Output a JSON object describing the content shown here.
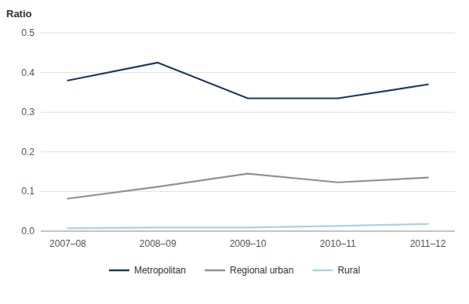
{
  "chart_data": {
    "type": "line",
    "y_label": "Ratio",
    "categories": [
      "2007–08",
      "2008–09",
      "2009–10",
      "2010–11",
      "2011–12"
    ],
    "series": [
      {
        "name": "Metropolitan",
        "color": "#1f3864",
        "values": [
          0.38,
          0.425,
          0.335,
          0.335,
          0.37
        ]
      },
      {
        "name": "Regional urban",
        "color": "#919191",
        "values": [
          0.082,
          0.112,
          0.145,
          0.123,
          0.135
        ]
      },
      {
        "name": "Rural",
        "color": "#a8d4e6",
        "values": [
          0.007,
          0.009,
          0.009,
          0.013,
          0.018
        ]
      }
    ],
    "ylim": [
      0.0,
      0.5
    ],
    "yticks": [
      {
        "value": 0.0,
        "label": "0.0"
      },
      0.1,
      0.2,
      0.3,
      0.4,
      0.5
    ],
    "grid": true,
    "legend": "bottom"
  }
}
